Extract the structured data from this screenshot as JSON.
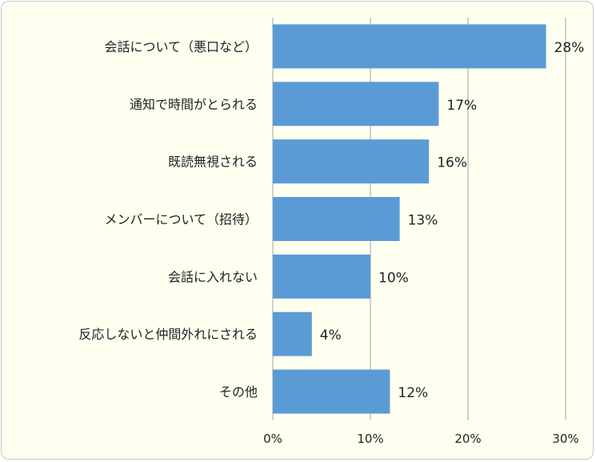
{
  "chart_data": {
    "type": "bar",
    "orientation": "horizontal",
    "categories": [
      "会話について（悪口など）",
      "通知で時間がとられる",
      "既読無視される",
      "メンバーについて（招待）",
      "会話に入れない",
      "反応しないと仲間外れにされる",
      "その他"
    ],
    "values": [
      28,
      17,
      16,
      13,
      10,
      4,
      12
    ],
    "value_labels": [
      "28%",
      "17%",
      "16%",
      "13%",
      "10%",
      "4%",
      "12%"
    ],
    "xlim": [
      0,
      30
    ],
    "x_ticks": [
      "0%",
      "10%",
      "20%",
      "30%"
    ],
    "grid": "vertical",
    "bar_color": "#5b9bd5",
    "background_color": "#fffff0"
  }
}
